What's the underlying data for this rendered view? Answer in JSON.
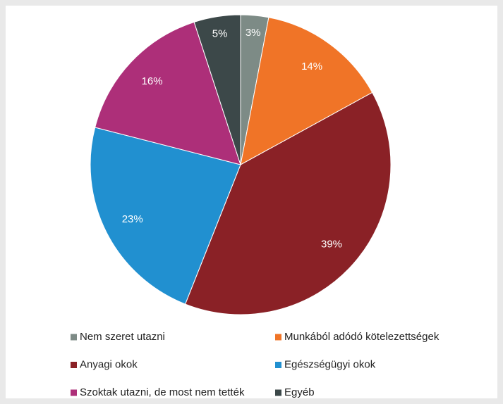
{
  "chart_data": {
    "type": "pie",
    "categories": [
      "Nem szeret utazni",
      "Munkából adódó kötelezettségek",
      "Anyagi okok",
      "Egészségügyi okok",
      "Szoktak utazni, de most nem tették",
      "Egyéb"
    ],
    "values": [
      3,
      14,
      39,
      23,
      16,
      5
    ],
    "value_labels": [
      "3%",
      "14%",
      "39%",
      "23%",
      "16%",
      "5%"
    ],
    "colors": [
      "#7d8b86",
      "#f07427",
      "#8a2126",
      "#2190d0",
      "#ad2f79",
      "#3c4849"
    ]
  }
}
